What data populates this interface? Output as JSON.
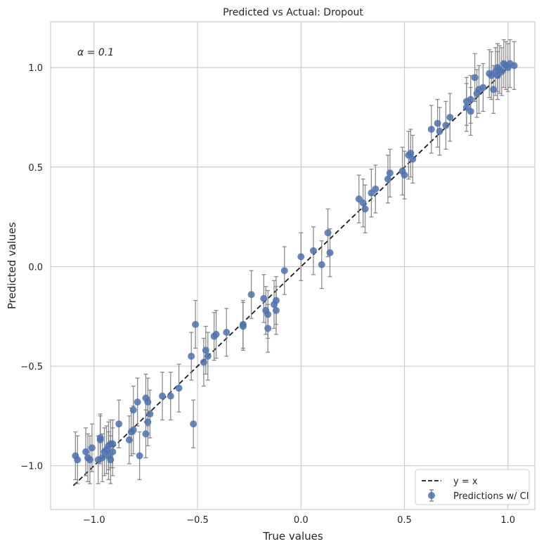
{
  "chart_data": {
    "type": "scatter",
    "title": "Predicted vs Actual: Dropout",
    "xlabel": "True values",
    "ylabel": "Predicted values",
    "xlim": [
      -1.21,
      1.13
    ],
    "ylim": [
      -1.22,
      1.23
    ],
    "xticks": [
      -1.0,
      -0.5,
      0.0,
      0.5,
      1.0
    ],
    "yticks": [
      -1.0,
      -0.5,
      0.0,
      0.5,
      1.0
    ],
    "xtick_labels": [
      "−1.0",
      "−0.5",
      "0.0",
      "0.5",
      "1.0"
    ],
    "ytick_labels": [
      "−1.0",
      "−0.5",
      "0.0",
      "0.5",
      "1.0"
    ],
    "grid": true,
    "annotation": "α = 0.1",
    "legend": {
      "placement": "lower-right",
      "entries": [
        "y = x",
        "Predictions w/ CI"
      ]
    },
    "reference_line": {
      "name": "y = x",
      "x": [
        -1.1,
        1.0
      ],
      "y": [
        -1.1,
        1.0
      ],
      "style": "dashed",
      "color": "#1a1a1a"
    },
    "colors": {
      "points": "#4c72b0",
      "errorbars": "#808080",
      "grid": "#cccccc"
    },
    "series": [
      {
        "name": "Predictions w/ CI",
        "error": 0.12,
        "points": [
          {
            "x": -1.09,
            "y": -0.95
          },
          {
            "x": -1.08,
            "y": -0.97
          },
          {
            "x": -1.04,
            "y": -0.93
          },
          {
            "x": -1.03,
            "y": -0.96
          },
          {
            "x": -1.02,
            "y": -0.97
          },
          {
            "x": -1.01,
            "y": -0.91
          },
          {
            "x": -0.98,
            "y": -0.97
          },
          {
            "x": -0.97,
            "y": -0.86
          },
          {
            "x": -0.97,
            "y": -0.87
          },
          {
            "x": -0.96,
            "y": -0.96
          },
          {
            "x": -0.95,
            "y": -0.93
          },
          {
            "x": -0.94,
            "y": -0.92
          },
          {
            "x": -0.93,
            "y": -0.95
          },
          {
            "x": -0.93,
            "y": -0.9
          },
          {
            "x": -0.92,
            "y": -0.89
          },
          {
            "x": -0.92,
            "y": -0.97
          },
          {
            "x": -0.91,
            "y": -0.89
          },
          {
            "x": -0.91,
            "y": -0.93
          },
          {
            "x": -0.88,
            "y": -0.79
          },
          {
            "x": -0.83,
            "y": -0.87
          },
          {
            "x": -0.82,
            "y": -0.83
          },
          {
            "x": -0.81,
            "y": -0.72
          },
          {
            "x": -0.81,
            "y": -0.82
          },
          {
            "x": -0.79,
            "y": -0.68
          },
          {
            "x": -0.78,
            "y": -0.95
          },
          {
            "x": -0.75,
            "y": -0.66
          },
          {
            "x": -0.75,
            "y": -0.84
          },
          {
            "x": -0.74,
            "y": -0.68
          },
          {
            "x": -0.74,
            "y": -0.78
          },
          {
            "x": -0.73,
            "y": -0.74
          },
          {
            "x": -0.67,
            "y": -0.65
          },
          {
            "x": -0.63,
            "y": -0.65
          },
          {
            "x": -0.59,
            "y": -0.61
          },
          {
            "x": -0.53,
            "y": -0.45
          },
          {
            "x": -0.51,
            "y": -0.29
          },
          {
            "x": -0.52,
            "y": -0.79
          },
          {
            "x": -0.47,
            "y": -0.48
          },
          {
            "x": -0.46,
            "y": -0.42
          },
          {
            "x": -0.45,
            "y": -0.45
          },
          {
            "x": -0.42,
            "y": -0.35
          },
          {
            "x": -0.41,
            "y": -0.34
          },
          {
            "x": -0.36,
            "y": -0.33
          },
          {
            "x": -0.28,
            "y": -0.29
          },
          {
            "x": -0.28,
            "y": -0.3
          },
          {
            "x": -0.24,
            "y": -0.14
          },
          {
            "x": -0.18,
            "y": -0.16
          },
          {
            "x": -0.17,
            "y": -0.22
          },
          {
            "x": -0.16,
            "y": -0.31
          },
          {
            "x": -0.16,
            "y": -0.24
          },
          {
            "x": -0.13,
            "y": -0.19
          },
          {
            "x": -0.12,
            "y": -0.22
          },
          {
            "x": -0.12,
            "y": -0.17
          },
          {
            "x": -0.08,
            "y": -0.02
          },
          {
            "x": 0.0,
            "y": 0.05
          },
          {
            "x": 0.06,
            "y": 0.08
          },
          {
            "x": 0.1,
            "y": 0.01
          },
          {
            "x": 0.13,
            "y": 0.17
          },
          {
            "x": 0.14,
            "y": 0.07
          },
          {
            "x": 0.28,
            "y": 0.34
          },
          {
            "x": 0.3,
            "y": 0.32
          },
          {
            "x": 0.31,
            "y": 0.29
          },
          {
            "x": 0.34,
            "y": 0.37
          },
          {
            "x": 0.36,
            "y": 0.39
          },
          {
            "x": 0.42,
            "y": 0.44
          },
          {
            "x": 0.43,
            "y": 0.47
          },
          {
            "x": 0.49,
            "y": 0.48
          },
          {
            "x": 0.5,
            "y": 0.46
          },
          {
            "x": 0.52,
            "y": 0.56
          },
          {
            "x": 0.53,
            "y": 0.57
          },
          {
            "x": 0.54,
            "y": 0.54
          },
          {
            "x": 0.63,
            "y": 0.69
          },
          {
            "x": 0.66,
            "y": 0.72
          },
          {
            "x": 0.67,
            "y": 0.68
          },
          {
            "x": 0.7,
            "y": 0.71
          },
          {
            "x": 0.72,
            "y": 0.75
          },
          {
            "x": 0.8,
            "y": 0.83
          },
          {
            "x": 0.8,
            "y": 0.8
          },
          {
            "x": 0.82,
            "y": 0.84
          },
          {
            "x": 0.82,
            "y": 0.78
          },
          {
            "x": 0.84,
            "y": 0.95
          },
          {
            "x": 0.85,
            "y": 0.87
          },
          {
            "x": 0.86,
            "y": 0.89
          },
          {
            "x": 0.88,
            "y": 0.9
          },
          {
            "x": 0.91,
            "y": 0.97
          },
          {
            "x": 0.92,
            "y": 0.96
          },
          {
            "x": 0.93,
            "y": 0.89
          },
          {
            "x": 0.94,
            "y": 0.98
          },
          {
            "x": 0.95,
            "y": 1.0
          },
          {
            "x": 0.95,
            "y": 0.96
          },
          {
            "x": 0.96,
            "y": 0.99
          },
          {
            "x": 0.97,
            "y": 0.98
          },
          {
            "x": 0.98,
            "y": 1.02
          },
          {
            "x": 0.99,
            "y": 1.01
          },
          {
            "x": 1.0,
            "y": 1.0
          },
          {
            "x": 1.01,
            "y": 1.02
          },
          {
            "x": 1.03,
            "y": 1.01
          }
        ]
      }
    ]
  }
}
